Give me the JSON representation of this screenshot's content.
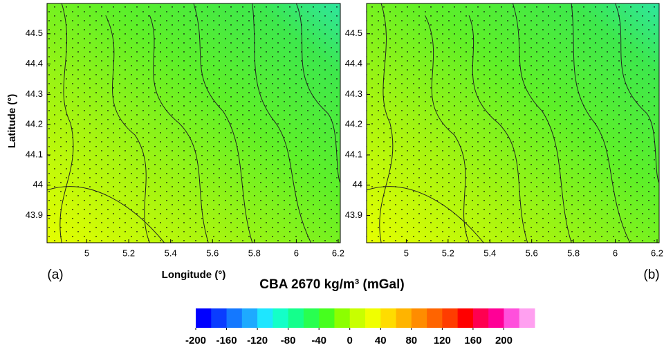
{
  "chart_data": [
    {
      "type": "contour",
      "panel_label": "(a)",
      "x_label": "Longitude (°)",
      "y_label": "Latitude (°)",
      "xlim": [
        4.81,
        6.21
      ],
      "ylim": [
        43.81,
        44.6
      ],
      "xticks": [
        5,
        5.2,
        5.4,
        5.6,
        5.8,
        6,
        6.2
      ],
      "yticks": [
        43.9,
        44,
        44.1,
        44.2,
        44.3,
        44.4,
        44.5
      ]
    },
    {
      "type": "contour",
      "panel_label": "(b)",
      "xlim": [
        4.81,
        6.21
      ],
      "ylim": [
        43.81,
        44.6
      ],
      "xticks": [
        5,
        5.2,
        5.4,
        5.6,
        5.8,
        6,
        6.2
      ],
      "yticks": [
        43.9,
        44,
        44.1,
        44.2,
        44.3,
        44.4,
        44.5
      ]
    },
    {
      "type": "colorbar",
      "title": "CBA 2670 kg/m³ (mGal)",
      "clim": [
        -200,
        240
      ],
      "ticks": [
        -200,
        -160,
        -120,
        -80,
        -40,
        0,
        40,
        80,
        120,
        160,
        200
      ],
      "colors": [
        "#0000ff",
        "#0a3cff",
        "#1478ff",
        "#1eaaff",
        "#1ee6ff",
        "#14ffc8",
        "#14ff8c",
        "#28ff50",
        "#46ff1e",
        "#8cff00",
        "#c8ff00",
        "#f0ff00",
        "#ffdc00",
        "#ffb400",
        "#ff8c00",
        "#ff6400",
        "#ff3c00",
        "#ff0000",
        "#ff0050",
        "#ff0096",
        "#ff50dc",
        "#ffa0f0"
      ]
    }
  ]
}
